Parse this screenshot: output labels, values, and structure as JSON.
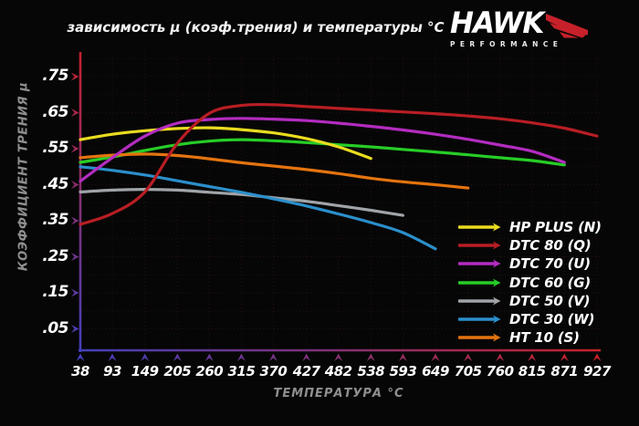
{
  "header": {
    "title": "зависимость μ (коэф.трения) и температуры °C",
    "logo": {
      "name": "HAWK",
      "subtitle": "PERFORMANCE",
      "accent_color": "#c6212a"
    }
  },
  "axes": {
    "y": {
      "title": "КОЭФФИЦИЕНТ ТРЕНИЯ μ",
      "tick_labels": [
        ".75",
        ".65",
        ".55",
        ".45",
        ".35",
        ".25",
        ".15",
        ".05"
      ],
      "gradient_top": "#c6212e",
      "gradient_bottom": "#4340bb"
    },
    "x": {
      "title": "ТЕМПЕРАТУРА °C",
      "tick_labels": [
        "38",
        "93",
        "149",
        "205",
        "260",
        "315",
        "370",
        "427",
        "482",
        "538",
        "593",
        "649",
        "705",
        "760",
        "815",
        "871",
        "927"
      ],
      "gradient_left": "#4340bb",
      "gradient_right": "#c6212a"
    }
  },
  "chart_data": {
    "type": "line",
    "title": "зависимость μ (коэф.трения) и температуры °C",
    "xlabel": "ТЕМПЕРАТУРА °C",
    "ylabel": "КОЭФФИЦИЕНТ ТРЕНИЯ μ",
    "x_ticks": [
      38,
      93,
      149,
      205,
      260,
      315,
      370,
      427,
      482,
      538,
      593,
      649,
      705,
      760,
      815,
      871,
      927
    ],
    "y_ticks": [
      0.75,
      0.65,
      0.55,
      0.45,
      0.35,
      0.25,
      0.15,
      0.05
    ],
    "xlim": [
      38,
      927
    ],
    "ylim": [
      0.0,
      0.82
    ],
    "grid": true,
    "grid_color": "rgba(190,60,50,0.18)",
    "background_color": "#060606",
    "legend_position": "lower right",
    "series": [
      {
        "name": "HP PLUS (N)",
        "color": "#e9dc20",
        "points": [
          [
            38,
            0.575
          ],
          [
            93,
            0.59
          ],
          [
            149,
            0.6
          ],
          [
            205,
            0.606
          ],
          [
            260,
            0.608
          ],
          [
            315,
            0.603
          ],
          [
            370,
            0.594
          ],
          [
            427,
            0.578
          ],
          [
            482,
            0.555
          ],
          [
            538,
            0.523
          ]
        ]
      },
      {
        "name": "DTC 80 (Q)",
        "color": "#b81e24",
        "points": [
          [
            38,
            0.34
          ],
          [
            93,
            0.37
          ],
          [
            149,
            0.43
          ],
          [
            205,
            0.565
          ],
          [
            260,
            0.648
          ],
          [
            315,
            0.67
          ],
          [
            370,
            0.672
          ],
          [
            427,
            0.667
          ],
          [
            482,
            0.662
          ],
          [
            538,
            0.657
          ],
          [
            593,
            0.652
          ],
          [
            649,
            0.647
          ],
          [
            705,
            0.641
          ],
          [
            760,
            0.633
          ],
          [
            815,
            0.622
          ],
          [
            871,
            0.607
          ],
          [
            927,
            0.585
          ]
        ]
      },
      {
        "name": "DTC 70 (U)",
        "color": "#b32cc0",
        "points": [
          [
            38,
            0.46
          ],
          [
            93,
            0.525
          ],
          [
            149,
            0.585
          ],
          [
            205,
            0.621
          ],
          [
            260,
            0.631
          ],
          [
            315,
            0.634
          ],
          [
            370,
            0.632
          ],
          [
            427,
            0.628
          ],
          [
            482,
            0.621
          ],
          [
            538,
            0.612
          ],
          [
            593,
            0.602
          ],
          [
            649,
            0.59
          ],
          [
            705,
            0.576
          ],
          [
            760,
            0.56
          ],
          [
            815,
            0.543
          ],
          [
            871,
            0.512
          ]
        ]
      },
      {
        "name": "DTC 60 (G)",
        "color": "#27cd27",
        "points": [
          [
            38,
            0.512
          ],
          [
            93,
            0.527
          ],
          [
            149,
            0.545
          ],
          [
            205,
            0.561
          ],
          [
            260,
            0.571
          ],
          [
            315,
            0.575
          ],
          [
            370,
            0.572
          ],
          [
            427,
            0.567
          ],
          [
            482,
            0.561
          ],
          [
            538,
            0.555
          ],
          [
            593,
            0.548
          ],
          [
            649,
            0.541
          ],
          [
            705,
            0.533
          ],
          [
            760,
            0.525
          ],
          [
            815,
            0.517
          ],
          [
            871,
            0.505
          ]
        ]
      },
      {
        "name": "DTC 50 (V)",
        "color": "#a0a4a8",
        "points": [
          [
            38,
            0.43
          ],
          [
            93,
            0.435
          ],
          [
            149,
            0.437
          ],
          [
            205,
            0.435
          ],
          [
            260,
            0.429
          ],
          [
            315,
            0.423
          ],
          [
            370,
            0.414
          ],
          [
            427,
            0.404
          ],
          [
            482,
            0.392
          ],
          [
            538,
            0.379
          ],
          [
            593,
            0.365
          ]
        ]
      },
      {
        "name": "DTC 30 (W)",
        "color": "#2b8fcb",
        "points": [
          [
            38,
            0.5
          ],
          [
            93,
            0.49
          ],
          [
            149,
            0.477
          ],
          [
            205,
            0.461
          ],
          [
            260,
            0.445
          ],
          [
            315,
            0.429
          ],
          [
            370,
            0.411
          ],
          [
            427,
            0.391
          ],
          [
            482,
            0.369
          ],
          [
            538,
            0.345
          ],
          [
            593,
            0.317
          ],
          [
            649,
            0.272
          ]
        ]
      },
      {
        "name": "HT 10 (S)",
        "color": "#e4740f",
        "points": [
          [
            38,
            0.525
          ],
          [
            93,
            0.532
          ],
          [
            149,
            0.535
          ],
          [
            205,
            0.531
          ],
          [
            260,
            0.522
          ],
          [
            315,
            0.511
          ],
          [
            370,
            0.502
          ],
          [
            427,
            0.492
          ],
          [
            482,
            0.481
          ],
          [
            538,
            0.468
          ],
          [
            593,
            0.458
          ],
          [
            649,
            0.45
          ],
          [
            705,
            0.441
          ]
        ]
      }
    ]
  }
}
